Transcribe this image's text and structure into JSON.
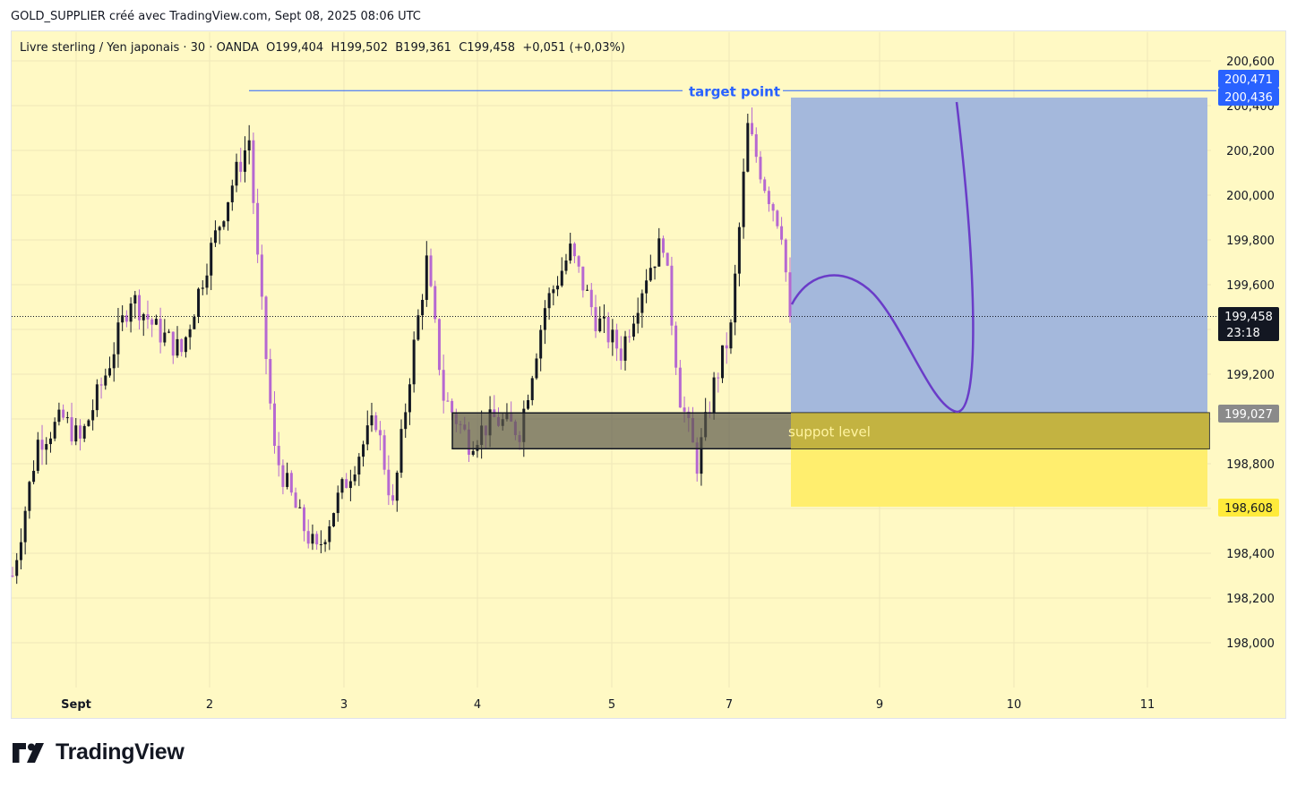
{
  "header": {
    "attribution": "GOLD_SUPPLIER créé avec TradingView.com, Sept 08, 2025 08:06 UTC"
  },
  "legend": {
    "symbol": "Livre sterling / Yen japonais · 30 · OANDA",
    "open": "O199,404",
    "high": "H199,502",
    "low": "B199,361",
    "close": "C199,458",
    "change": "+0,051 (+0,03%)"
  },
  "footer": {
    "brand": "TradingView"
  },
  "colors": {
    "background": "#fff9c4",
    "up_candle": "#131722",
    "down_candle": "#b668d1",
    "target_box": "#a4b8dc",
    "stop_box": "#ffee6e",
    "support_box": "#5c5a4c",
    "target_line": "#2962ff",
    "projection": "#6a3cc8"
  },
  "chart_data": {
    "type": "candlestick",
    "y_axis": {
      "min": 197.7,
      "max": 200.7,
      "tick_labels": [
        "200,600",
        "200,200",
        "200,000",
        "199,800",
        "199,600",
        "199,200",
        "198,800",
        "198,400",
        "198,200",
        "198,000"
      ],
      "tick_values": [
        200.6,
        200.2,
        200.0,
        199.8,
        199.6,
        199.2,
        198.8,
        198.4,
        198.2,
        198.0
      ],
      "hidden_label": "200,400"
    },
    "x_axis": {
      "tick_labels": [
        "Sept",
        "2",
        "3",
        "4",
        "5",
        "7",
        "9",
        "10",
        "11"
      ]
    },
    "price_labels": {
      "target_high": "200,471",
      "target_entry": "200,436",
      "current_price": "199,458",
      "countdown": "23:18",
      "support_top": "199,027",
      "stop": "198,608"
    },
    "drawings": {
      "target_label": "target point",
      "support_label": "suppot level"
    },
    "trend_points": [
      {
        "x": 0,
        "y": 198.3
      },
      {
        "x": 6,
        "y": 198.9
      },
      {
        "x": 12,
        "y": 199.0
      },
      {
        "x": 16,
        "y": 198.9
      },
      {
        "x": 22,
        "y": 199.2
      },
      {
        "x": 28,
        "y": 199.55
      },
      {
        "x": 34,
        "y": 199.4
      },
      {
        "x": 40,
        "y": 199.3
      },
      {
        "x": 46,
        "y": 199.7
      },
      {
        "x": 52,
        "y": 200.05
      },
      {
        "x": 56,
        "y": 200.25
      },
      {
        "x": 58,
        "y": 199.7
      },
      {
        "x": 62,
        "y": 198.85
      },
      {
        "x": 68,
        "y": 198.55
      },
      {
        "x": 72,
        "y": 198.4
      },
      {
        "x": 76,
        "y": 198.6
      },
      {
        "x": 82,
        "y": 198.85
      },
      {
        "x": 86,
        "y": 199.0
      },
      {
        "x": 90,
        "y": 198.6
      },
      {
        "x": 94,
        "y": 199.2
      },
      {
        "x": 98,
        "y": 199.7
      },
      {
        "x": 102,
        "y": 199.1
      },
      {
        "x": 108,
        "y": 198.9
      },
      {
        "x": 114,
        "y": 199.0
      },
      {
        "x": 120,
        "y": 198.95
      },
      {
        "x": 126,
        "y": 199.5
      },
      {
        "x": 132,
        "y": 199.75
      },
      {
        "x": 138,
        "y": 199.45
      },
      {
        "x": 144,
        "y": 199.3
      },
      {
        "x": 150,
        "y": 199.65
      },
      {
        "x": 154,
        "y": 199.8
      },
      {
        "x": 158,
        "y": 199.1
      },
      {
        "x": 162,
        "y": 198.8
      },
      {
        "x": 166,
        "y": 199.15
      },
      {
        "x": 170,
        "y": 199.4
      },
      {
        "x": 174,
        "y": 200.3
      },
      {
        "x": 178,
        "y": 200.05
      },
      {
        "x": 182,
        "y": 199.85
      },
      {
        "x": 184,
        "y": 199.458
      }
    ]
  }
}
